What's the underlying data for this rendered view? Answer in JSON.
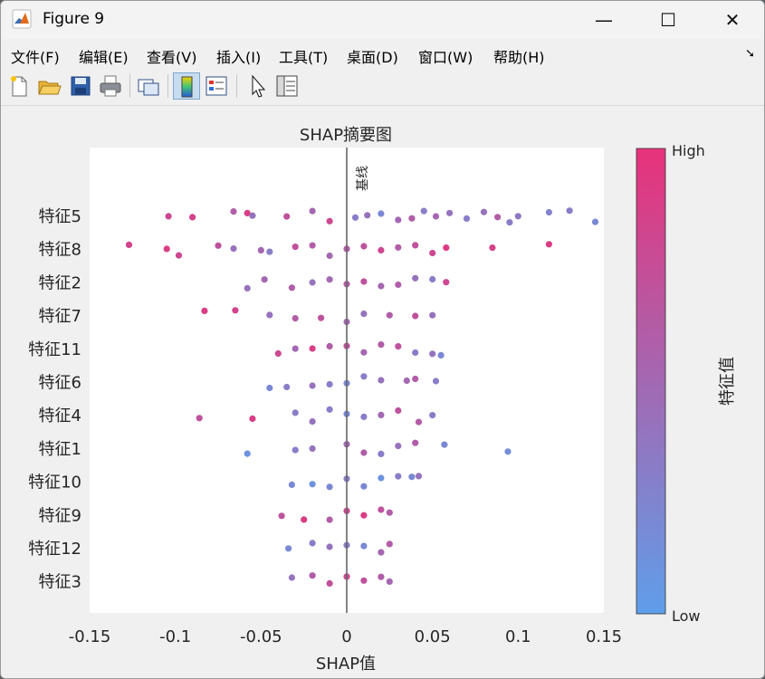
{
  "window": {
    "title": "Figure 9",
    "controls": {
      "minimize": "—",
      "maximize": "☐",
      "close": "✕"
    }
  },
  "menu": [
    "文件(F)",
    "编辑(E)",
    "查看(V)",
    "插入(I)",
    "工具(T)",
    "桌面(D)",
    "窗口(W)",
    "帮助(H)"
  ],
  "menu_overflow_icon": "arrow-icon",
  "toolbar": [
    {
      "name": "new-figure-icon"
    },
    {
      "name": "open-file-icon"
    },
    {
      "name": "save-icon"
    },
    {
      "name": "print-icon"
    },
    {
      "name": "link-plot-icon"
    },
    {
      "name": "insert-colorbar-icon",
      "active": true
    },
    {
      "name": "insert-legend-icon"
    },
    {
      "name": "edit-plot-cursor-icon"
    },
    {
      "name": "property-inspector-icon"
    }
  ],
  "colors": {
    "low": "#5f9eea",
    "high": "#e8327a",
    "axes_bg": "#ffffff",
    "figure_bg": "#f0f0f0"
  },
  "chart_data": {
    "type": "scatter",
    "title": "SHAP摘要图",
    "xlabel": "SHAP值",
    "ylabel": "",
    "xlim": [
      -0.15,
      0.15
    ],
    "xticks": [
      "-0.15",
      "-0.1",
      "-0.05",
      "0",
      "0.05",
      "0.1",
      "0.15"
    ],
    "baseline_label": "基线",
    "features": [
      "特征5",
      "特征8",
      "特征2",
      "特征7",
      "特征11",
      "特征6",
      "特征4",
      "特征1",
      "特征10",
      "特征9",
      "特征12",
      "特征3"
    ],
    "colorbar": {
      "label": "特征值",
      "high_label": "High",
      "low_label": "Low"
    },
    "points": [
      [
        [
          -0.104,
          0.8
        ],
        [
          -0.09,
          0.85
        ],
        [
          -0.066,
          0.6
        ],
        [
          -0.058,
          0.9
        ],
        [
          -0.055,
          0.4
        ],
        [
          -0.035,
          0.7
        ],
        [
          -0.02,
          0.5
        ],
        [
          -0.01,
          0.8
        ],
        [
          0.005,
          0.3
        ],
        [
          0.012,
          0.4
        ],
        [
          0.02,
          0.2
        ],
        [
          0.03,
          0.5
        ],
        [
          0.038,
          0.6
        ],
        [
          0.045,
          0.3
        ],
        [
          0.052,
          0.5
        ],
        [
          0.06,
          0.4
        ],
        [
          0.07,
          0.3
        ],
        [
          0.08,
          0.4
        ],
        [
          0.088,
          0.6
        ],
        [
          0.1,
          0.35
        ],
        [
          0.118,
          0.25
        ],
        [
          0.13,
          0.3
        ],
        [
          0.145,
          0.2
        ],
        [
          0.095,
          0.3
        ]
      ],
      [
        [
          -0.127,
          0.85
        ],
        [
          -0.105,
          0.9
        ],
        [
          -0.098,
          0.8
        ],
        [
          -0.075,
          0.7
        ],
        [
          -0.066,
          0.4
        ],
        [
          -0.05,
          0.5
        ],
        [
          -0.045,
          0.3
        ],
        [
          -0.03,
          0.7
        ],
        [
          -0.02,
          0.6
        ],
        [
          -0.01,
          0.5
        ],
        [
          0.0,
          0.6
        ],
        [
          0.01,
          0.7
        ],
        [
          0.02,
          0.8
        ],
        [
          0.03,
          0.6
        ],
        [
          0.04,
          0.7
        ],
        [
          0.05,
          0.8
        ],
        [
          0.058,
          0.9
        ],
        [
          0.085,
          0.85
        ],
        [
          0.118,
          0.9
        ]
      ],
      [
        [
          -0.058,
          0.4
        ],
        [
          -0.048,
          0.5
        ],
        [
          -0.032,
          0.6
        ],
        [
          -0.02,
          0.4
        ],
        [
          -0.01,
          0.5
        ],
        [
          0.0,
          0.6
        ],
        [
          0.01,
          0.7
        ],
        [
          0.02,
          0.5
        ],
        [
          0.03,
          0.6
        ],
        [
          0.04,
          0.4
        ],
        [
          0.05,
          0.3
        ],
        [
          0.058,
          0.8
        ]
      ],
      [
        [
          -0.083,
          0.9
        ],
        [
          -0.065,
          0.85
        ],
        [
          -0.045,
          0.4
        ],
        [
          -0.03,
          0.6
        ],
        [
          -0.015,
          0.7
        ],
        [
          0.0,
          0.5
        ],
        [
          0.01,
          0.4
        ],
        [
          0.025,
          0.6
        ],
        [
          0.04,
          0.7
        ],
        [
          0.05,
          0.4
        ]
      ],
      [
        [
          -0.04,
          0.8
        ],
        [
          -0.03,
          0.5
        ],
        [
          -0.02,
          0.9
        ],
        [
          -0.01,
          0.6
        ],
        [
          0.0,
          0.7
        ],
        [
          0.01,
          0.5
        ],
        [
          0.02,
          0.6
        ],
        [
          0.03,
          0.7
        ],
        [
          0.04,
          0.3
        ],
        [
          0.05,
          0.4
        ],
        [
          0.055,
          0.2
        ]
      ],
      [
        [
          -0.045,
          0.2
        ],
        [
          -0.035,
          0.3
        ],
        [
          -0.02,
          0.4
        ],
        [
          -0.01,
          0.3
        ],
        [
          0.0,
          0.2
        ],
        [
          0.01,
          0.3
        ],
        [
          0.02,
          0.4
        ],
        [
          0.035,
          0.5
        ],
        [
          0.04,
          0.6
        ],
        [
          0.052,
          0.3
        ]
      ],
      [
        [
          -0.086,
          0.7
        ],
        [
          -0.055,
          0.9
        ],
        [
          -0.03,
          0.3
        ],
        [
          -0.02,
          0.4
        ],
        [
          -0.01,
          0.3
        ],
        [
          0.0,
          0.2
        ],
        [
          0.01,
          0.3
        ],
        [
          0.02,
          0.5
        ],
        [
          0.03,
          0.7
        ],
        [
          0.042,
          0.6
        ],
        [
          0.05,
          0.3
        ]
      ],
      [
        [
          -0.058,
          0.1
        ],
        [
          -0.03,
          0.3
        ],
        [
          -0.02,
          0.4
        ],
        [
          0.0,
          0.5
        ],
        [
          0.01,
          0.6
        ],
        [
          0.02,
          0.3
        ],
        [
          0.03,
          0.4
        ],
        [
          0.04,
          0.6
        ],
        [
          0.057,
          0.2
        ],
        [
          0.094,
          0.15
        ]
      ],
      [
        [
          -0.032,
          0.2
        ],
        [
          -0.02,
          0.1
        ],
        [
          -0.01,
          0.2
        ],
        [
          0.0,
          0.3
        ],
        [
          0.01,
          0.2
        ],
        [
          0.02,
          0.1
        ],
        [
          0.03,
          0.3
        ],
        [
          0.038,
          0.2
        ],
        [
          0.042,
          0.4
        ]
      ],
      [
        [
          -0.038,
          0.7
        ],
        [
          -0.025,
          0.9
        ],
        [
          -0.01,
          0.6
        ],
        [
          0.0,
          0.8
        ],
        [
          0.01,
          0.9
        ],
        [
          0.02,
          0.7
        ],
        [
          0.025,
          0.6
        ]
      ],
      [
        [
          -0.034,
          0.2
        ],
        [
          -0.02,
          0.3
        ],
        [
          -0.01,
          0.4
        ],
        [
          0.0,
          0.3
        ],
        [
          0.01,
          0.2
        ],
        [
          0.02,
          0.5
        ],
        [
          0.025,
          0.6
        ]
      ],
      [
        [
          -0.032,
          0.4
        ],
        [
          -0.02,
          0.6
        ],
        [
          -0.01,
          0.7
        ],
        [
          0.0,
          0.8
        ],
        [
          0.01,
          0.7
        ],
        [
          0.02,
          0.6
        ],
        [
          0.025,
          0.5
        ]
      ]
    ]
  }
}
